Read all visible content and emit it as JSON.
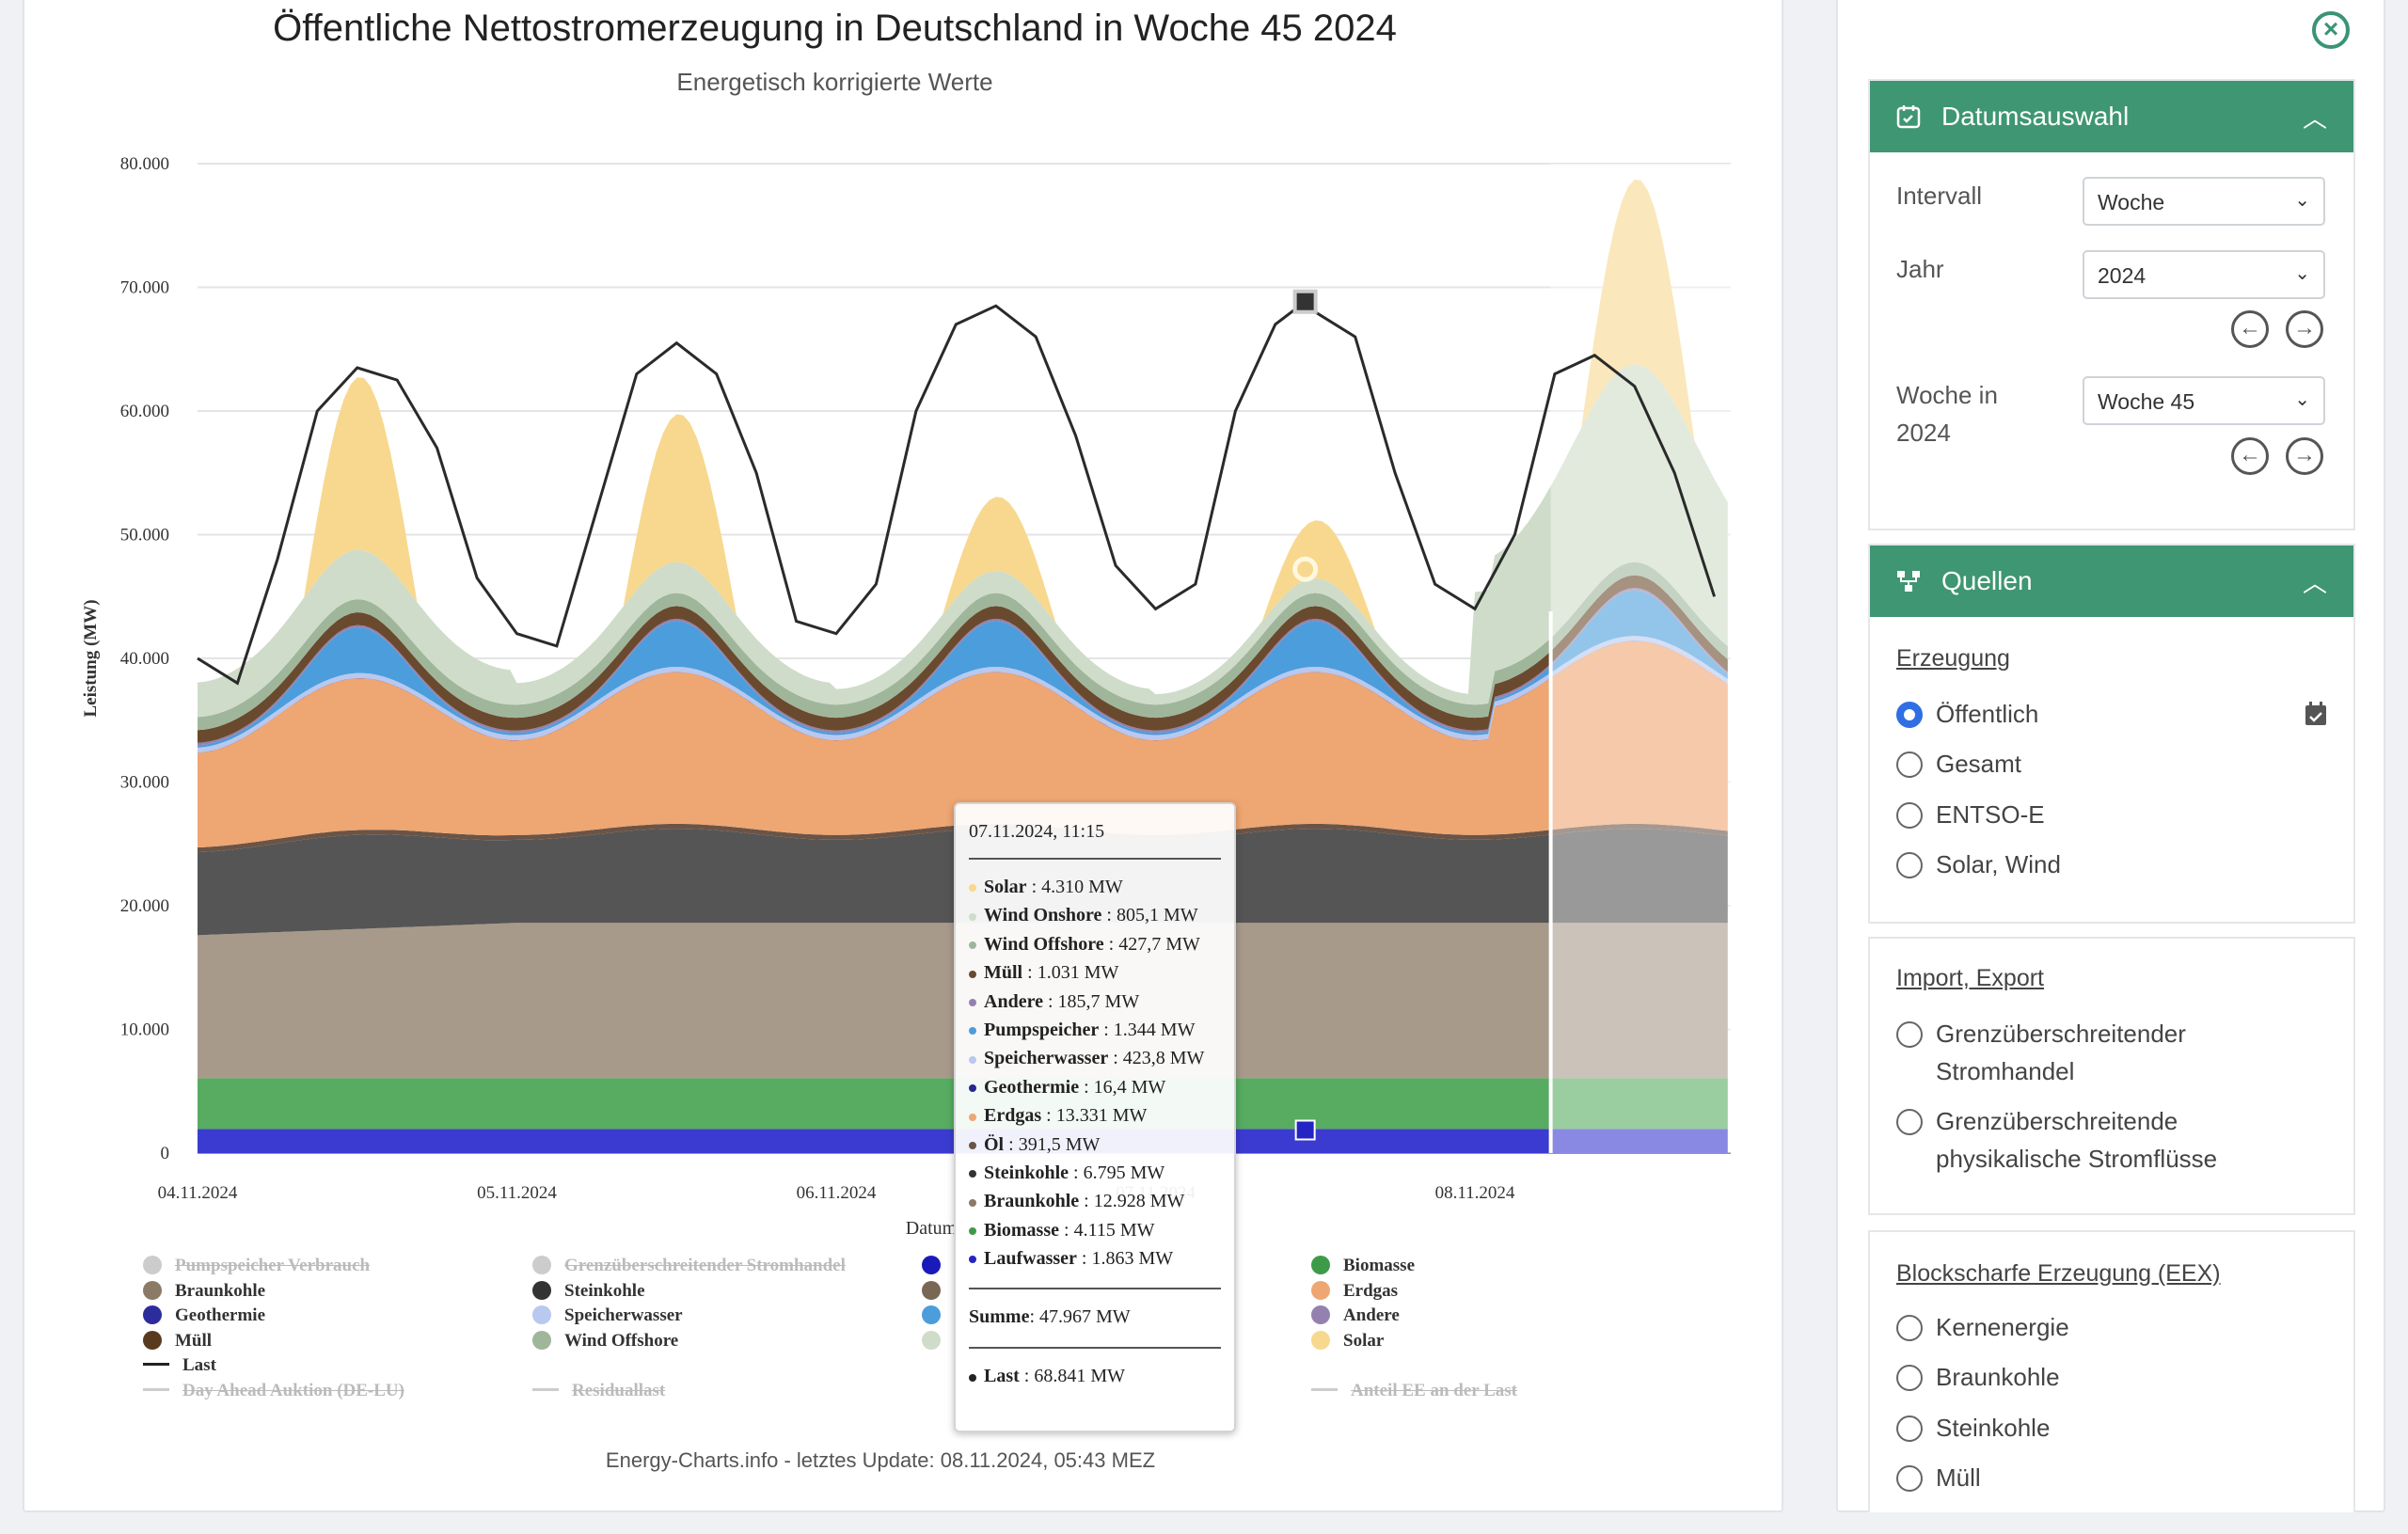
{
  "chart": {
    "title": "Öffentliche Nettostromerzeugung in Deutschland in Woche 45 2024",
    "subtitle": "Energetisch korrigierte Werte",
    "ylabel": "Leistung (MW)",
    "xlabel": "Datum",
    "footer": "Energy-Charts.info - letztes Update: 08.11.2024, 05:43 MEZ"
  },
  "chart_data": {
    "type": "area",
    "title": "Öffentliche Nettostromerzeugung in Deutschland in Woche 45 2024",
    "subtitle": "Energetisch korrigierte Werte",
    "xlabel": "Datum",
    "ylabel": "Leistung (MW)",
    "ylim": [
      0,
      80000
    ],
    "yticks": [
      "0",
      "10.000",
      "20.000",
      "30.000",
      "40.000",
      "50.000",
      "60.000",
      "70.000",
      "80.000"
    ],
    "xticks": [
      "04.11.2024",
      "05.11.2024",
      "06.11.2024",
      "07.11.2024",
      "08.11.2024"
    ],
    "xlim_days": [
      0,
      4.8
    ],
    "stacked": true,
    "grid": true,
    "legend_position": "bottom",
    "series": [
      {
        "name": "Laufwasser",
        "color": "#3b3bd1",
        "values": [
          1800,
          1800,
          1850,
          1850,
          1860,
          1863,
          1900,
          2300,
          2300
        ]
      },
      {
        "name": "Biomasse",
        "color": "#57ac61",
        "values": [
          4100,
          4100,
          4100,
          4100,
          4110,
          4115,
          4100,
          4100,
          4100
        ]
      },
      {
        "name": "Braunkohle",
        "color": "#a89a8b",
        "values": [
          10500,
          12000,
          12500,
          12800,
          12900,
          12928,
          13000,
          13200,
          13300
        ]
      },
      {
        "name": "Steinkohle",
        "color": "#555555",
        "values": [
          6000,
          6500,
          6700,
          6800,
          6800,
          6795,
          6800,
          7000,
          7000
        ]
      },
      {
        "name": "Öl",
        "color": "#6b5446",
        "values": [
          390,
          390,
          390,
          390,
          391,
          391.5,
          390,
          390,
          390
        ]
      },
      {
        "name": "Erdgas",
        "color": "#eea672",
        "values": [
          5000,
          12000,
          10000,
          13500,
          8000,
          13331,
          9000,
          8000,
          8000
        ]
      },
      {
        "name": "Geothermie",
        "color": "#26278f",
        "values": [
          16,
          16,
          16,
          16,
          16,
          16.4,
          16,
          16,
          16
        ]
      },
      {
        "name": "Speicherwasser",
        "color": "#b8c8ef",
        "values": [
          300,
          420,
          420,
          420,
          420,
          423.8,
          420,
          420,
          420
        ]
      },
      {
        "name": "Pumpspeicher",
        "color": "#4c9ddb",
        "values": [
          300,
          3500,
          500,
          3000,
          400,
          1344,
          500,
          1500,
          500
        ]
      },
      {
        "name": "Andere",
        "color": "#9481b0",
        "values": [
          180,
          185,
          185,
          185,
          185,
          185.7,
          185,
          185,
          185
        ]
      },
      {
        "name": "Müll",
        "color": "#6a4a2e",
        "values": [
          1000,
          1030,
          1030,
          1030,
          1030,
          1031,
          1030,
          1030,
          1030
        ]
      },
      {
        "name": "Wind Offshore",
        "color": "#9fb69b",
        "values": [
          1500,
          500,
          600,
          400,
          500,
          427.7,
          600,
          3000,
          2000
        ]
      },
      {
        "name": "Wind Onshore",
        "color": "#cfdcc9",
        "values": [
          3000,
          2000,
          1500,
          1000,
          900,
          805.1,
          1200,
          12000,
          10000
        ]
      },
      {
        "name": "Solar",
        "color": "#f7d88e",
        "values": [
          0,
          8000,
          0,
          4500,
          0,
          4310,
          0,
          8000,
          0
        ]
      }
    ],
    "x_hours": [
      0,
      24,
      36,
      48,
      60,
      83.25,
      84,
      108,
      115
    ],
    "last_line": {
      "name": "Last",
      "color": "#2a2a2a",
      "hours": [
        0,
        3,
        6,
        9,
        12,
        15,
        18,
        21,
        24,
        27,
        30,
        33,
        36,
        39,
        42,
        45,
        48,
        51,
        54,
        57,
        60,
        63,
        66,
        69,
        72,
        75,
        78,
        81,
        83.25,
        84,
        87,
        90,
        93,
        96,
        99,
        102,
        105,
        108,
        111,
        114
      ],
      "values": [
        40000,
        38000,
        48000,
        60000,
        63500,
        62500,
        57000,
        46500,
        42000,
        41000,
        52000,
        63000,
        65500,
        63000,
        55000,
        43000,
        42000,
        46000,
        60000,
        67000,
        68500,
        66000,
        58000,
        47500,
        44000,
        46000,
        60000,
        67000,
        68841,
        68000,
        66000,
        55000,
        46000,
        44000,
        50000,
        63000,
        64500,
        62000,
        55000,
        45000
      ]
    }
  },
  "tooltip": {
    "time": "07.11.2024, 11:15",
    "rows": [
      {
        "label": "Solar",
        "value": "4.310 MW",
        "color": "#f7d88e"
      },
      {
        "label": "Wind Onshore",
        "value": "805,1 MW",
        "color": "#cfdcc9"
      },
      {
        "label": "Wind Offshore",
        "value": "427,7 MW",
        "color": "#9fb69b"
      },
      {
        "label": "Müll",
        "value": "1.031 MW",
        "color": "#6a4a2e"
      },
      {
        "label": "Andere",
        "value": "185,7 MW",
        "color": "#9481b0"
      },
      {
        "label": "Pumpspeicher",
        "value": "1.344 MW",
        "color": "#4c9ddb"
      },
      {
        "label": "Speicherwasser",
        "value": "423,8 MW",
        "color": "#b8c8ef"
      },
      {
        "label": "Geothermie",
        "value": "16,4 MW",
        "color": "#26278f"
      },
      {
        "label": "Erdgas",
        "value": "13.331 MW",
        "color": "#eea672"
      },
      {
        "label": "Öl",
        "value": "391,5 MW",
        "color": "#6b5446"
      },
      {
        "label": "Steinkohle",
        "value": "6.795 MW",
        "color": "#333333"
      },
      {
        "label": "Braunkohle",
        "value": "12.928 MW",
        "color": "#8b7a66"
      },
      {
        "label": "Biomasse",
        "value": "4.115 MW",
        "color": "#3d9a49"
      },
      {
        "label": "Laufwasser",
        "value": "1.863 MW",
        "color": "#2424c4"
      }
    ],
    "sum_label": "Summe",
    "sum_value": "47.967 MW",
    "last_label": "Last",
    "last_value": "68.841 MW"
  },
  "legend": [
    {
      "label": "Pumpspeicher Verbrauch",
      "color": "#cccccc",
      "kind": "dot",
      "off": true
    },
    {
      "label": "Braunkohle",
      "color": "#8b7a66",
      "kind": "dot",
      "off": false
    },
    {
      "label": "Geothermie",
      "color": "#2c2c9c",
      "kind": "dot",
      "off": false
    },
    {
      "label": "Müll",
      "color": "#5a3a1f",
      "kind": "dot",
      "off": false
    },
    {
      "label": "Last",
      "color": "#222222",
      "kind": "line",
      "off": false
    },
    {
      "label": "Day Ahead Auktion (DE-LU)",
      "color": "#cccccc",
      "kind": "line",
      "off": true
    },
    {
      "label": "Grenzüberschreitender Stromhandel",
      "color": "#cccccc",
      "kind": "dot",
      "off": true
    },
    {
      "label": "Steinkohle",
      "color": "#333333",
      "kind": "dot",
      "off": false
    },
    {
      "label": "Speicherwasser",
      "color": "#b8c8ef",
      "kind": "dot",
      "off": false
    },
    {
      "label": "Wind Offshore",
      "color": "#9fb69b",
      "kind": "dot",
      "off": false
    },
    {
      "label": "Residuallast",
      "color": "#cccccc",
      "kind": "line",
      "off": true
    },
    {
      "label": "Biomasse",
      "color": "#3d9a49",
      "kind": "dot",
      "off": false
    },
    {
      "label": "Erdgas",
      "color": "#eea672",
      "kind": "dot",
      "off": false
    },
    {
      "label": "Andere",
      "color": "#9481b0",
      "kind": "dot",
      "off": false
    },
    {
      "label": "Solar",
      "color": "#f7d88e",
      "kind": "dot",
      "off": false
    },
    {
      "label": "Anteil EE an der Last",
      "color": "#cccccc",
      "kind": "line",
      "off": true
    }
  ],
  "legend_hidden_col3_colors": [
    "#1a1ab8",
    "#7a6654",
    "#4c9ddb",
    "#cfdcc9"
  ],
  "sidebar": {
    "date_panel": {
      "title": "Datumsauswahl",
      "interval_label": "Intervall",
      "interval_value": "Woche",
      "year_label": "Jahr",
      "year_value": "2024",
      "week_label_1": "Woche in",
      "week_label_2": "2024",
      "week_value": "Woche 45"
    },
    "sources_panel": {
      "title": "Quellen",
      "erzeugung_link": "Erzeugung",
      "erzeugung_options": [
        "Öffentlich",
        "Gesamt",
        "ENTSO-E",
        "Solar, Wind"
      ],
      "import_link": "Import, Export",
      "import_options": [
        "Grenzüberschreitender Stromhandel",
        "Grenzüberschreitende physikalische Stromflüsse"
      ],
      "block_link": "Blockscharfe Erzeugung (EEX)",
      "block_options": [
        "Kernenergie",
        "Braunkohle",
        "Steinkohle",
        "Müll"
      ]
    }
  }
}
